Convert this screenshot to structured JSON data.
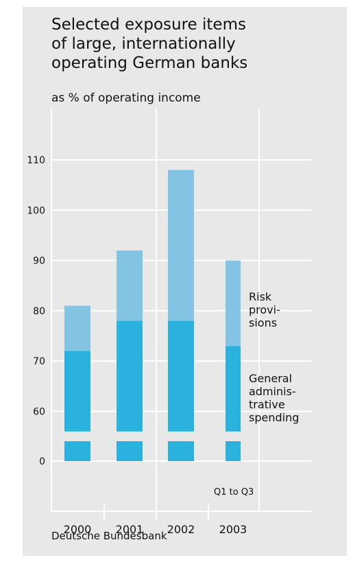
{
  "title_lines": [
    "Selected exposure items",
    "of large, internationally",
    "operating German banks"
  ],
  "subtitle": "as % of operating income",
  "source": "Deutsche Bundesbank",
  "chart_data": {
    "type": "bar",
    "stacked": true,
    "broken_axis": true,
    "categories": [
      "2000",
      "2001",
      "2002",
      "2003"
    ],
    "category_notes": [
      "",
      "",
      "",
      "Q1 to Q3"
    ],
    "y_ticks": [
      0,
      60,
      70,
      80,
      90,
      100,
      110
    ],
    "ylim_upper": [
      55,
      115
    ],
    "series": [
      {
        "name": "General administrative spending",
        "label_lines": [
          "General",
          "adminis-",
          "trative",
          "spending"
        ],
        "values": [
          72,
          78,
          78,
          73
        ],
        "color": "#2bb1dd"
      },
      {
        "name": "Risk provisions",
        "label_lines": [
          "Risk",
          "provi-",
          "sions"
        ],
        "values": [
          9,
          14,
          30,
          17
        ],
        "color": "#82c4e2"
      }
    ],
    "grid": true
  }
}
